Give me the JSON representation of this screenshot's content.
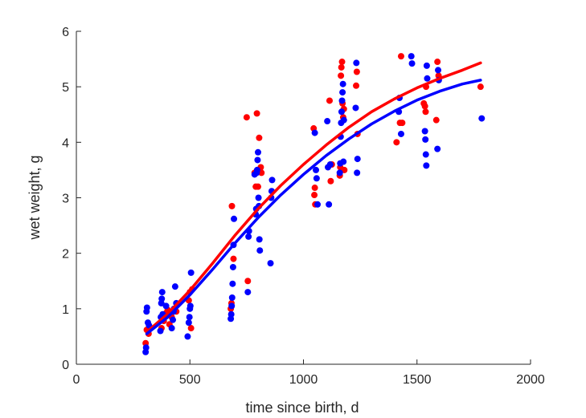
{
  "chart_data": {
    "type": "scatter",
    "title": "",
    "xlabel": "time since birth, d",
    "ylabel": "wet weight, g",
    "xlim": [
      0,
      2000
    ],
    "ylim": [
      0,
      6
    ],
    "xticks": [
      0,
      500,
      1000,
      1500,
      2000
    ],
    "yticks": [
      0,
      1,
      2,
      3,
      4,
      5,
      6
    ],
    "grid": false,
    "legend": "none",
    "series": [
      {
        "color": "#ff0000",
        "points": [
          [
            305,
            0.38
          ],
          [
            310,
            0.62
          ],
          [
            318,
            0.55
          ],
          [
            375,
            0.65
          ],
          [
            385,
            0.78
          ],
          [
            395,
            0.92
          ],
          [
            402,
            0.98
          ],
          [
            410,
            0.72
          ],
          [
            420,
            0.85
          ],
          [
            440,
            0.95
          ],
          [
            495,
            1.15
          ],
          [
            500,
            1.3
          ],
          [
            505,
            0.65
          ],
          [
            510,
            1.35
          ],
          [
            680,
            1.0
          ],
          [
            683,
            1.1
          ],
          [
            685,
            2.85
          ],
          [
            692,
            1.9
          ],
          [
            750,
            4.45
          ],
          [
            755,
            1.5
          ],
          [
            785,
            3.45
          ],
          [
            790,
            3.2
          ],
          [
            795,
            4.52
          ],
          [
            800,
            3.2
          ],
          [
            805,
            4.08
          ],
          [
            808,
            3.5
          ],
          [
            812,
            3.55
          ],
          [
            815,
            3.45
          ],
          [
            1045,
            4.25
          ],
          [
            1048,
            3.05
          ],
          [
            1050,
            3.18
          ],
          [
            1052,
            2.88
          ],
          [
            1115,
            4.75
          ],
          [
            1120,
            3.3
          ],
          [
            1125,
            3.6
          ],
          [
            1160,
            3.4
          ],
          [
            1162,
            3.55
          ],
          [
            1165,
            5.2
          ],
          [
            1167,
            5.35
          ],
          [
            1170,
            5.45
          ],
          [
            1172,
            4.7
          ],
          [
            1175,
            4.45
          ],
          [
            1178,
            4.6
          ],
          [
            1180,
            3.5
          ],
          [
            1232,
            5.02
          ],
          [
            1235,
            5.27
          ],
          [
            1238,
            4.15
          ],
          [
            1410,
            4.0
          ],
          [
            1425,
            4.35
          ],
          [
            1430,
            5.55
          ],
          [
            1435,
            4.35
          ],
          [
            1530,
            4.7
          ],
          [
            1535,
            4.65
          ],
          [
            1538,
            4.55
          ],
          [
            1540,
            5.0
          ],
          [
            1585,
            4.4
          ],
          [
            1590,
            5.45
          ],
          [
            1595,
            5.2
          ],
          [
            1780,
            5.0
          ]
        ],
        "curve": [
          [
            310,
            0.58
          ],
          [
            400,
            0.9
          ],
          [
            500,
            1.33
          ],
          [
            600,
            1.82
          ],
          [
            700,
            2.33
          ],
          [
            800,
            2.8
          ],
          [
            900,
            3.22
          ],
          [
            1000,
            3.6
          ],
          [
            1100,
            3.95
          ],
          [
            1200,
            4.27
          ],
          [
            1300,
            4.55
          ],
          [
            1400,
            4.78
          ],
          [
            1500,
            4.98
          ],
          [
            1600,
            5.15
          ],
          [
            1700,
            5.3
          ],
          [
            1780,
            5.43
          ]
        ]
      },
      {
        "color": "#0000ff",
        "points": [
          [
            305,
            0.22
          ],
          [
            307,
            0.3
          ],
          [
            309,
            0.95
          ],
          [
            311,
            1.02
          ],
          [
            315,
            0.75
          ],
          [
            320,
            0.7
          ],
          [
            370,
            0.6
          ],
          [
            372,
            0.85
          ],
          [
            374,
            1.1
          ],
          [
            376,
            1.18
          ],
          [
            378,
            1.3
          ],
          [
            380,
            0.9
          ],
          [
            395,
            1.05
          ],
          [
            420,
            0.65
          ],
          [
            425,
            0.8
          ],
          [
            428,
            0.95
          ],
          [
            430,
            1.0
          ],
          [
            435,
            1.4
          ],
          [
            440,
            1.1
          ],
          [
            490,
            0.5
          ],
          [
            495,
            0.75
          ],
          [
            498,
            0.85
          ],
          [
            500,
            1.0
          ],
          [
            502,
            1.05
          ],
          [
            505,
            1.65
          ],
          [
            680,
            0.82
          ],
          [
            682,
            0.9
          ],
          [
            684,
            1.05
          ],
          [
            686,
            1.2
          ],
          [
            688,
            1.45
          ],
          [
            690,
            1.75
          ],
          [
            692,
            2.15
          ],
          [
            694,
            2.62
          ],
          [
            755,
            1.3
          ],
          [
            758,
            2.3
          ],
          [
            760,
            2.4
          ],
          [
            785,
            3.42
          ],
          [
            790,
            2.7
          ],
          [
            792,
            2.8
          ],
          [
            794,
            3.45
          ],
          [
            796,
            3.5
          ],
          [
            798,
            3.68
          ],
          [
            800,
            3.82
          ],
          [
            802,
            3.0
          ],
          [
            804,
            2.85
          ],
          [
            806,
            2.25
          ],
          [
            808,
            2.05
          ],
          [
            855,
            1.82
          ],
          [
            858,
            3.0
          ],
          [
            860,
            3.12
          ],
          [
            862,
            3.32
          ],
          [
            1050,
            4.17
          ],
          [
            1055,
            3.5
          ],
          [
            1058,
            3.35
          ],
          [
            1062,
            2.88
          ],
          [
            1105,
            4.38
          ],
          [
            1108,
            3.55
          ],
          [
            1112,
            2.88
          ],
          [
            1118,
            3.6
          ],
          [
            1160,
            3.45
          ],
          [
            1162,
            3.62
          ],
          [
            1164,
            4.1
          ],
          [
            1166,
            4.35
          ],
          [
            1168,
            4.55
          ],
          [
            1170,
            4.75
          ],
          [
            1172,
            4.9
          ],
          [
            1174,
            5.05
          ],
          [
            1176,
            3.65
          ],
          [
            1178,
            4.4
          ],
          [
            1230,
            4.62
          ],
          [
            1233,
            5.43
          ],
          [
            1236,
            3.45
          ],
          [
            1238,
            3.7
          ],
          [
            1420,
            4.55
          ],
          [
            1423,
            4.8
          ],
          [
            1430,
            4.15
          ],
          [
            1475,
            5.55
          ],
          [
            1478,
            5.42
          ],
          [
            1535,
            4.2
          ],
          [
            1537,
            4.05
          ],
          [
            1539,
            3.78
          ],
          [
            1541,
            3.58
          ],
          [
            1543,
            5.38
          ],
          [
            1545,
            5.15
          ],
          [
            1590,
            3.88
          ],
          [
            1593,
            5.3
          ],
          [
            1596,
            5.12
          ],
          [
            1785,
            4.43
          ]
        ],
        "curve": [
          [
            310,
            0.55
          ],
          [
            400,
            0.84
          ],
          [
            500,
            1.25
          ],
          [
            600,
            1.71
          ],
          [
            700,
            2.19
          ],
          [
            800,
            2.64
          ],
          [
            900,
            3.05
          ],
          [
            1000,
            3.42
          ],
          [
            1100,
            3.76
          ],
          [
            1200,
            4.06
          ],
          [
            1300,
            4.33
          ],
          [
            1400,
            4.56
          ],
          [
            1500,
            4.76
          ],
          [
            1600,
            4.92
          ],
          [
            1700,
            5.05
          ],
          [
            1780,
            5.12
          ]
        ]
      }
    ]
  }
}
